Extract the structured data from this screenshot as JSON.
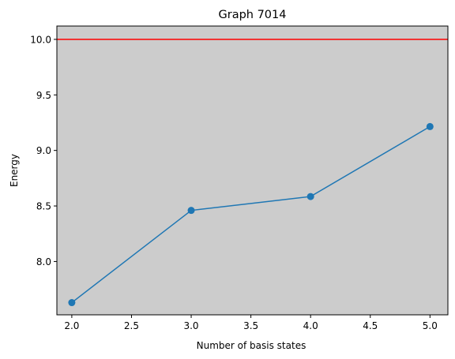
{
  "chart_data": {
    "type": "line",
    "title": "Graph 7014",
    "xlabel": "Number of basis states",
    "ylabel": "Energy",
    "xlim": [
      1.875,
      5.15
    ],
    "ylim": [
      7.52,
      10.12
    ],
    "xticks": [
      2.0,
      2.5,
      3.0,
      3.5,
      4.0,
      4.5,
      5.0
    ],
    "xtick_labels": [
      "2.0",
      "2.5",
      "3.0",
      "3.5",
      "4.0",
      "4.5",
      "5.0"
    ],
    "yticks": [
      8.0,
      8.5,
      9.0,
      9.5,
      10.0
    ],
    "ytick_labels": [
      "8.0",
      "8.5",
      "9.0",
      "9.5",
      "10.0"
    ],
    "grid": false,
    "background_color": "#cccccc",
    "series": [
      {
        "x": [
          2,
          3,
          4,
          5
        ],
        "y": [
          7.63,
          8.46,
          8.585,
          9.215
        ],
        "color": "#1f77b4",
        "marker": "circle"
      }
    ],
    "reference_lines": [
      {
        "orientation": "horizontal",
        "y": 10.0,
        "color": "#ff0000"
      }
    ]
  }
}
